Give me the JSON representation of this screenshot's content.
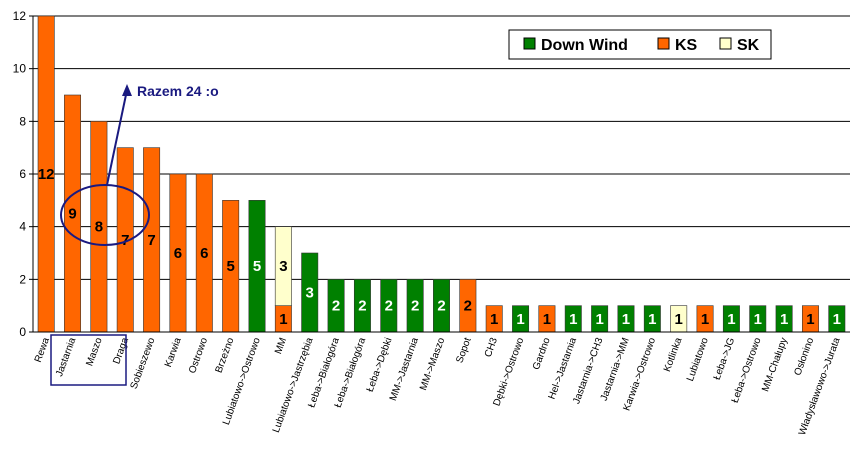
{
  "chart_data": {
    "type": "bar",
    "stacked": true,
    "ylim": [
      0,
      12
    ],
    "yticks": [
      0,
      2,
      4,
      6,
      8,
      10,
      12
    ],
    "grid": true,
    "legend_position": "top-right",
    "categories": [
      "Rewa",
      "Jastarnia",
      "Maszo",
      "Draga",
      "Sobieszewo",
      "Karwia",
      "Ostrowo",
      "Brzeżno",
      "Lubiatowo->Ostrowo",
      "MM",
      "Lubiatowo->Jastrzębia",
      "Łeba->Białogóra",
      "Łeba->Białogóra",
      "Łeba->Dębki",
      "MM->Jastarnia",
      "MM->Maszo",
      "Sopot",
      "CH3",
      "Dębki->Ostrowo",
      "Gardno",
      "Hel->Jastarnia",
      "Jastarnia->CH3",
      "Jastarnia->MM",
      "Karwia->Ostrowo",
      "Kotlinka",
      "Lubiatowo",
      "Łeba->JG",
      "Łeba->Ostrowo",
      "MM-Chałupy",
      "Osłonino",
      "Władysławowo->Jurata"
    ],
    "series": [
      {
        "name": "Down Wind",
        "color": "#008000",
        "label_color": "#ffffff",
        "values": [
          0,
          0,
          0,
          0,
          0,
          0,
          0,
          0,
          5,
          0,
          3,
          2,
          2,
          2,
          2,
          2,
          0,
          0,
          1,
          0,
          1,
          1,
          1,
          1,
          0,
          0,
          1,
          1,
          1,
          0,
          1
        ]
      },
      {
        "name": "KS",
        "color": "#ff6600",
        "label_color": "#000000",
        "values": [
          12,
          9,
          8,
          7,
          7,
          6,
          6,
          5,
          0,
          1,
          0,
          0,
          0,
          0,
          0,
          0,
          2,
          1,
          0,
          1,
          0,
          0,
          0,
          0,
          0,
          1,
          0,
          0,
          0,
          1,
          0
        ]
      },
      {
        "name": "SK",
        "color": "#ffffcc",
        "label_color": "#000000",
        "values": [
          0,
          0,
          0,
          0,
          0,
          0,
          0,
          0,
          0,
          3,
          0,
          0,
          0,
          0,
          0,
          0,
          0,
          0,
          0,
          0,
          0,
          0,
          0,
          0,
          1,
          0,
          0,
          0,
          0,
          0,
          0
        ]
      }
    ],
    "annotation": "Razem 24 :o"
  }
}
